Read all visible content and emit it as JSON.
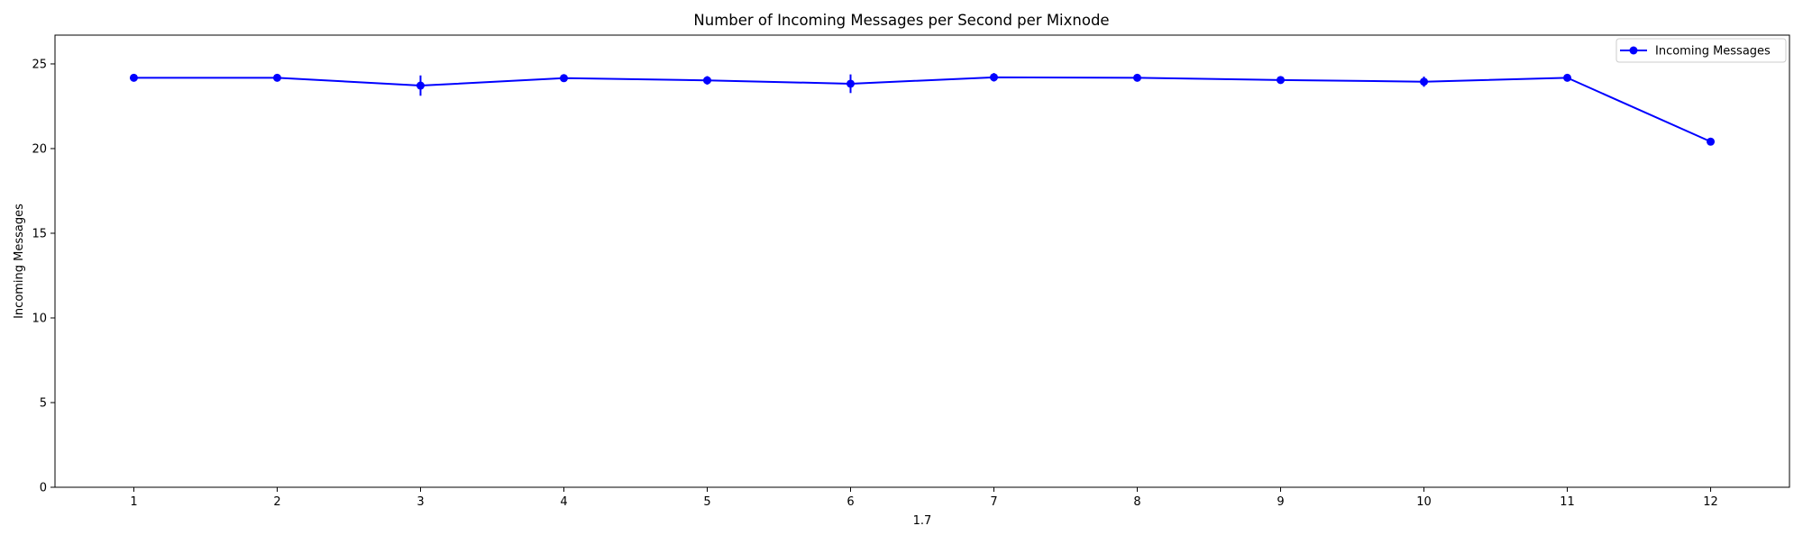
{
  "chart_data": {
    "type": "line",
    "title": "Number of Incoming Messages per Second per Mixnode",
    "xlabel": "1.7",
    "ylabel": "Incoming Messages",
    "x": [
      1,
      2,
      3,
      4,
      5,
      6,
      7,
      8,
      9,
      10,
      11,
      12
    ],
    "xlim": [
      0.45,
      12.55
    ],
    "ylim": [
      0,
      26.7
    ],
    "xticks": [
      1,
      2,
      3,
      4,
      5,
      6,
      7,
      8,
      9,
      10,
      11,
      12
    ],
    "yticks": [
      0,
      5,
      10,
      15,
      20,
      25
    ],
    "grid": false,
    "legend": {
      "position": "top-right",
      "entries": [
        "Incoming Messages"
      ]
    },
    "series": [
      {
        "name": "Incoming Messages",
        "color": "#0000ff",
        "marker": "circle",
        "values": [
          24.18,
          24.18,
          23.72,
          24.16,
          24.03,
          23.83,
          24.21,
          24.18,
          24.05,
          23.95,
          24.18,
          20.41
        ],
        "errors": [
          0.05,
          0.05,
          0.6,
          0.1,
          0.25,
          0.55,
          0.25,
          0.05,
          0.1,
          0.3,
          0.05,
          0.1
        ]
      }
    ]
  }
}
